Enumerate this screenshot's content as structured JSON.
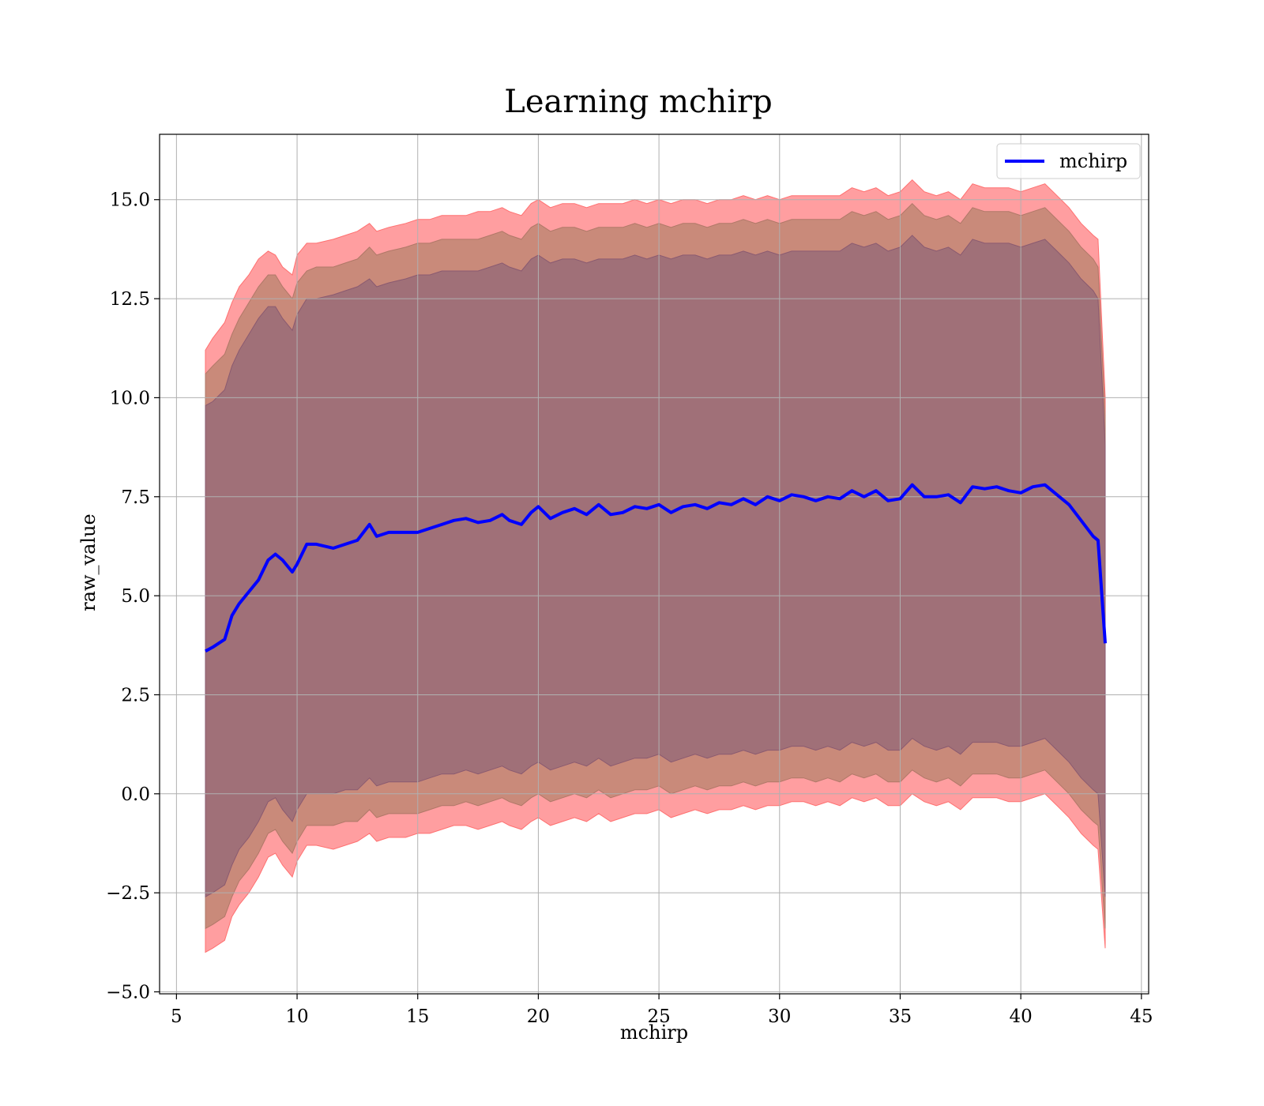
{
  "chart_data": {
    "type": "area",
    "title": "Learning mchirp",
    "xlabel": "mchirp",
    "ylabel": "raw_value",
    "xlim": [
      4.3,
      45.3
    ],
    "ylim": [
      -5.05,
      16.65
    ],
    "xticks": [
      5,
      10,
      15,
      20,
      25,
      30,
      35,
      40,
      45
    ],
    "xtick_labels": [
      "5",
      "10",
      "15",
      "20",
      "25",
      "30",
      "35",
      "40",
      "45"
    ],
    "yticks": [
      -5.0,
      -2.5,
      0.0,
      2.5,
      5.0,
      7.5,
      10.0,
      12.5,
      15.0
    ],
    "ytick_labels": [
      "−5.0",
      "−2.5",
      "0.0",
      "2.5",
      "5.0",
      "7.5",
      "10.0",
      "12.5",
      "15.0"
    ],
    "grid": true,
    "legend": {
      "position": "top-right",
      "entries": [
        "mchirp"
      ]
    },
    "colors": {
      "line": "#0000ff",
      "band": "#ff0000",
      "band_inner": "#5a2030",
      "grid": "#b0b0b0"
    },
    "series": [
      {
        "name": "mchirp",
        "x": [
          6.2,
          6.5,
          7.0,
          7.3,
          7.6,
          8.0,
          8.4,
          8.8,
          9.1,
          9.4,
          9.8,
          10.0,
          10.4,
          10.8,
          11.5,
          12.0,
          12.5,
          13.0,
          13.3,
          13.8,
          14.5,
          15.0,
          15.5,
          16.0,
          16.5,
          17.0,
          17.5,
          18.0,
          18.5,
          18.8,
          19.3,
          19.7,
          20.0,
          20.5,
          21.0,
          21.5,
          22.0,
          22.5,
          23.0,
          23.5,
          24.0,
          24.5,
          25.0,
          25.5,
          26.0,
          26.5,
          27.0,
          27.5,
          28.0,
          28.5,
          29.0,
          29.5,
          30.0,
          30.5,
          31.0,
          31.5,
          32.0,
          32.5,
          33.0,
          33.5,
          34.0,
          34.5,
          35.0,
          35.5,
          36.0,
          36.5,
          37.0,
          37.5,
          38.0,
          38.5,
          39.0,
          39.5,
          40.0,
          40.5,
          41.0,
          41.5,
          42.0,
          42.5,
          43.0,
          43.2,
          43.5
        ],
        "mean": [
          3.6,
          3.7,
          3.9,
          4.5,
          4.8,
          5.1,
          5.4,
          5.9,
          6.05,
          5.9,
          5.6,
          5.8,
          6.3,
          6.3,
          6.2,
          6.3,
          6.4,
          6.8,
          6.5,
          6.6,
          6.6,
          6.6,
          6.7,
          6.8,
          6.9,
          6.95,
          6.85,
          6.9,
          7.05,
          6.9,
          6.8,
          7.1,
          7.25,
          6.95,
          7.1,
          7.2,
          7.05,
          7.3,
          7.05,
          7.1,
          7.25,
          7.2,
          7.3,
          7.1,
          7.25,
          7.3,
          7.2,
          7.35,
          7.3,
          7.45,
          7.3,
          7.5,
          7.4,
          7.55,
          7.5,
          7.4,
          7.5,
          7.45,
          7.65,
          7.5,
          7.65,
          7.4,
          7.45,
          7.8,
          7.5,
          7.5,
          7.55,
          7.35,
          7.75,
          7.7,
          7.75,
          7.65,
          7.6,
          7.75,
          7.8,
          7.55,
          7.3,
          6.9,
          6.5,
          6.4,
          3.8
        ],
        "band_outer_upper": [
          11.2,
          11.5,
          11.9,
          12.4,
          12.8,
          13.1,
          13.5,
          13.7,
          13.6,
          13.3,
          13.1,
          13.6,
          13.9,
          13.9,
          14.0,
          14.1,
          14.2,
          14.4,
          14.2,
          14.3,
          14.4,
          14.5,
          14.5,
          14.6,
          14.6,
          14.6,
          14.7,
          14.7,
          14.8,
          14.7,
          14.6,
          14.9,
          15.0,
          14.8,
          14.9,
          14.9,
          14.8,
          14.9,
          14.9,
          14.9,
          15.0,
          14.9,
          15.0,
          14.9,
          15.0,
          15.0,
          14.9,
          15.0,
          15.0,
          15.1,
          15.0,
          15.1,
          15.0,
          15.1,
          15.1,
          15.1,
          15.1,
          15.1,
          15.3,
          15.2,
          15.3,
          15.1,
          15.2,
          15.5,
          15.2,
          15.1,
          15.2,
          15.0,
          15.4,
          15.3,
          15.3,
          15.3,
          15.2,
          15.3,
          15.4,
          15.1,
          14.8,
          14.4,
          14.1,
          14.0,
          10.0
        ],
        "band_outer_lower": [
          -4.0,
          -3.9,
          -3.7,
          -3.1,
          -2.8,
          -2.5,
          -2.1,
          -1.6,
          -1.5,
          -1.8,
          -2.1,
          -1.7,
          -1.3,
          -1.3,
          -1.4,
          -1.3,
          -1.2,
          -1.0,
          -1.2,
          -1.1,
          -1.1,
          -1.0,
          -1.0,
          -0.9,
          -0.8,
          -0.8,
          -0.9,
          -0.8,
          -0.7,
          -0.8,
          -0.9,
          -0.7,
          -0.6,
          -0.8,
          -0.7,
          -0.6,
          -0.7,
          -0.5,
          -0.7,
          -0.6,
          -0.5,
          -0.5,
          -0.4,
          -0.6,
          -0.5,
          -0.4,
          -0.5,
          -0.4,
          -0.4,
          -0.3,
          -0.4,
          -0.3,
          -0.3,
          -0.2,
          -0.2,
          -0.3,
          -0.2,
          -0.3,
          -0.1,
          -0.2,
          -0.1,
          -0.3,
          -0.3,
          0.0,
          -0.2,
          -0.3,
          -0.2,
          -0.4,
          -0.1,
          -0.1,
          -0.1,
          -0.2,
          -0.2,
          -0.1,
          0.0,
          -0.3,
          -0.6,
          -1.0,
          -1.3,
          -1.4,
          -3.9
        ],
        "band_mid_upper": [
          10.6,
          10.8,
          11.1,
          11.6,
          12.0,
          12.4,
          12.8,
          13.1,
          13.1,
          12.8,
          12.5,
          12.9,
          13.2,
          13.3,
          13.3,
          13.4,
          13.5,
          13.8,
          13.6,
          13.7,
          13.8,
          13.9,
          13.9,
          14.0,
          14.0,
          14.0,
          14.0,
          14.1,
          14.2,
          14.1,
          14.0,
          14.3,
          14.4,
          14.2,
          14.3,
          14.3,
          14.2,
          14.3,
          14.3,
          14.3,
          14.4,
          14.3,
          14.4,
          14.3,
          14.4,
          14.4,
          14.3,
          14.4,
          14.4,
          14.5,
          14.4,
          14.5,
          14.4,
          14.5,
          14.5,
          14.5,
          14.5,
          14.5,
          14.7,
          14.6,
          14.7,
          14.5,
          14.6,
          14.9,
          14.6,
          14.5,
          14.6,
          14.4,
          14.8,
          14.7,
          14.7,
          14.7,
          14.6,
          14.7,
          14.8,
          14.5,
          14.2,
          13.8,
          13.5,
          13.3,
          9.5
        ],
        "band_mid_lower": [
          -3.4,
          -3.3,
          -3.1,
          -2.6,
          -2.2,
          -1.9,
          -1.5,
          -1.0,
          -0.9,
          -1.2,
          -1.5,
          -1.2,
          -0.8,
          -0.8,
          -0.8,
          -0.7,
          -0.7,
          -0.4,
          -0.6,
          -0.5,
          -0.5,
          -0.5,
          -0.4,
          -0.3,
          -0.3,
          -0.2,
          -0.3,
          -0.2,
          -0.1,
          -0.2,
          -0.3,
          -0.1,
          0.0,
          -0.2,
          -0.1,
          0.0,
          -0.1,
          0.1,
          -0.1,
          0.0,
          0.1,
          0.1,
          0.2,
          0.0,
          0.1,
          0.2,
          0.1,
          0.2,
          0.2,
          0.3,
          0.2,
          0.3,
          0.3,
          0.4,
          0.4,
          0.3,
          0.4,
          0.3,
          0.5,
          0.4,
          0.5,
          0.3,
          0.3,
          0.6,
          0.4,
          0.3,
          0.4,
          0.2,
          0.5,
          0.5,
          0.5,
          0.4,
          0.4,
          0.5,
          0.6,
          0.3,
          0.0,
          -0.4,
          -0.7,
          -0.8,
          -3.4
        ],
        "band_inner_upper": [
          9.8,
          9.9,
          10.2,
          10.8,
          11.2,
          11.6,
          12.0,
          12.3,
          12.3,
          12.0,
          11.7,
          12.1,
          12.5,
          12.5,
          12.6,
          12.7,
          12.8,
          13.0,
          12.8,
          12.9,
          13.0,
          13.1,
          13.1,
          13.2,
          13.2,
          13.2,
          13.2,
          13.3,
          13.4,
          13.3,
          13.2,
          13.5,
          13.6,
          13.4,
          13.5,
          13.5,
          13.4,
          13.5,
          13.5,
          13.5,
          13.6,
          13.5,
          13.6,
          13.5,
          13.6,
          13.6,
          13.5,
          13.6,
          13.6,
          13.7,
          13.6,
          13.7,
          13.6,
          13.7,
          13.7,
          13.7,
          13.7,
          13.7,
          13.9,
          13.8,
          13.9,
          13.7,
          13.8,
          14.1,
          13.8,
          13.7,
          13.8,
          13.6,
          14.0,
          13.9,
          13.9,
          13.9,
          13.8,
          13.9,
          14.0,
          13.7,
          13.4,
          13.0,
          12.7,
          12.5,
          8.8
        ],
        "band_inner_lower": [
          -2.6,
          -2.5,
          -2.3,
          -1.8,
          -1.4,
          -1.1,
          -0.7,
          -0.2,
          -0.1,
          -0.4,
          -0.7,
          -0.4,
          0.0,
          0.0,
          0.0,
          0.1,
          0.1,
          0.4,
          0.2,
          0.3,
          0.3,
          0.3,
          0.4,
          0.5,
          0.5,
          0.6,
          0.5,
          0.6,
          0.7,
          0.6,
          0.5,
          0.7,
          0.8,
          0.6,
          0.7,
          0.8,
          0.7,
          0.9,
          0.7,
          0.8,
          0.9,
          0.9,
          1.0,
          0.8,
          0.9,
          1.0,
          0.9,
          1.0,
          1.0,
          1.1,
          1.0,
          1.1,
          1.1,
          1.2,
          1.2,
          1.1,
          1.2,
          1.1,
          1.3,
          1.2,
          1.3,
          1.1,
          1.1,
          1.4,
          1.2,
          1.1,
          1.2,
          1.0,
          1.3,
          1.3,
          1.3,
          1.2,
          1.2,
          1.3,
          1.4,
          1.1,
          0.8,
          0.4,
          0.1,
          0.0,
          -2.6
        ]
      }
    ]
  }
}
